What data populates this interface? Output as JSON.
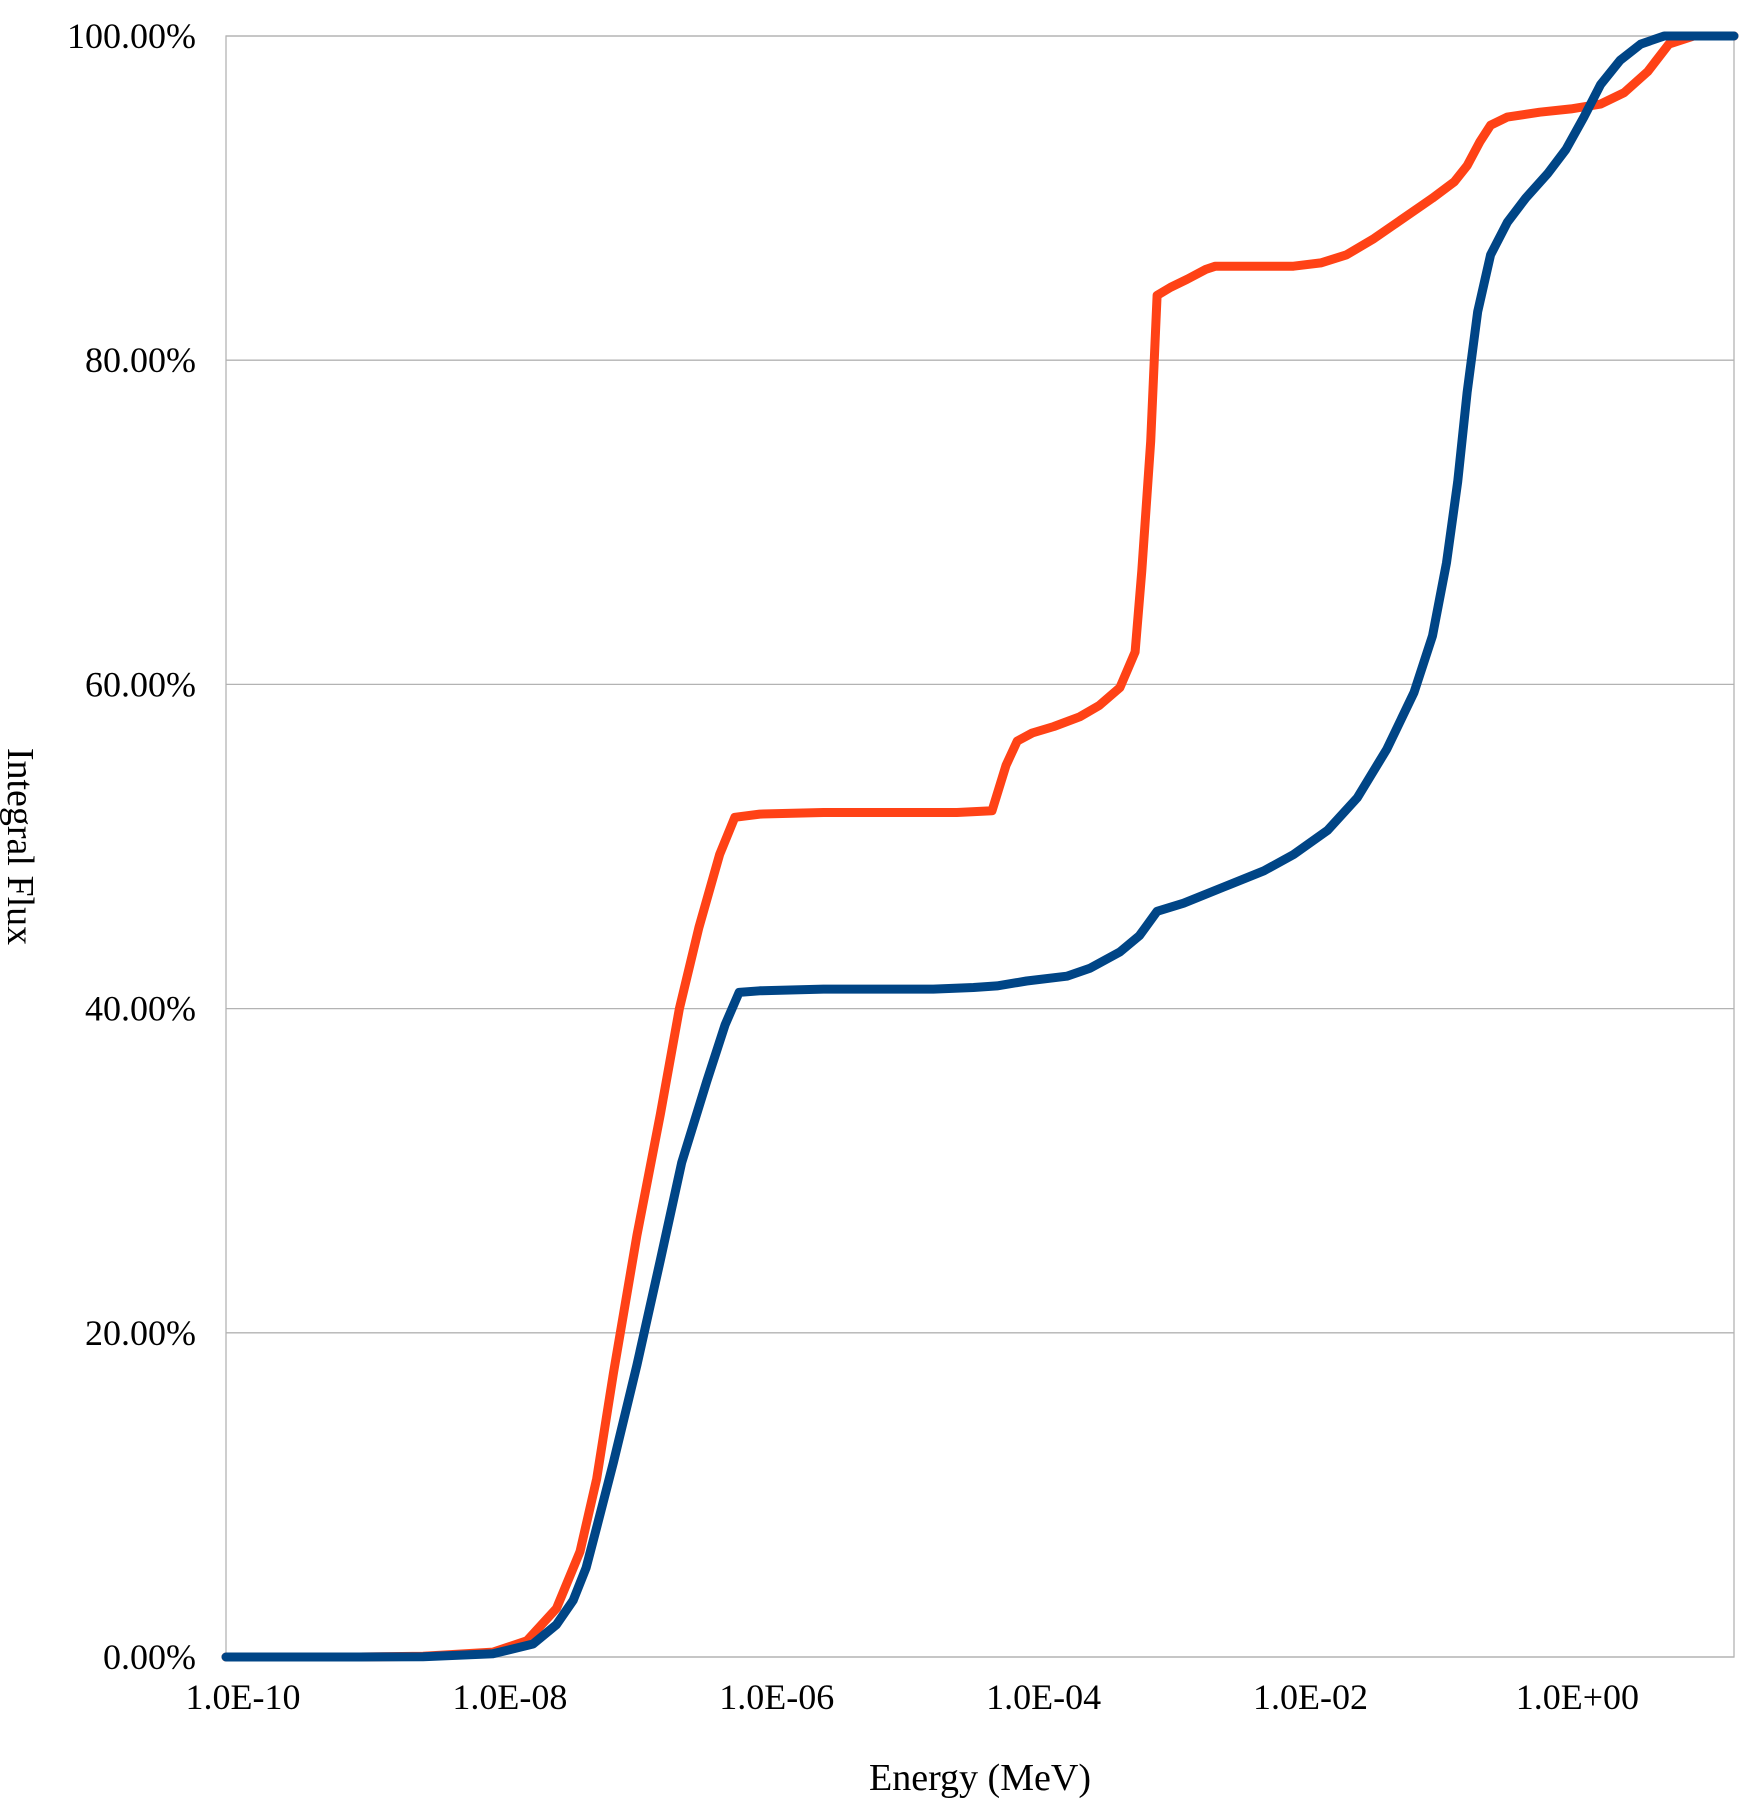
{
  "chart_data": {
    "type": "line",
    "xlabel": "Energy (MeV)",
    "ylabel": "Integral Flux",
    "x_scale": "log",
    "xlim": [
      1e-10,
      20
    ],
    "ylim": [
      0,
      100
    ],
    "grid": true,
    "legend": "none",
    "x_ticks": [
      {
        "value": 1e-10,
        "label": "1.0E-10"
      },
      {
        "value": 1e-08,
        "label": "1.0E-08"
      },
      {
        "value": 1e-06,
        "label": "1.0E-06"
      },
      {
        "value": 0.0001,
        "label": "1.0E-04"
      },
      {
        "value": 0.01,
        "label": "1.0E-02"
      },
      {
        "value": 1,
        "label": "1.0E+00"
      }
    ],
    "y_ticks": [
      {
        "value": 0,
        "label": "0.00%"
      },
      {
        "value": 20,
        "label": "20.00%"
      },
      {
        "value": 40,
        "label": "40.00%"
      },
      {
        "value": 60,
        "label": "60.00%"
      },
      {
        "value": 80,
        "label": "80.00%"
      },
      {
        "value": 100,
        "label": "100.00%"
      }
    ],
    "series": [
      {
        "color": "#ff4216",
        "points": [
          [
            1e-10,
            0
          ],
          [
            1e-09,
            0
          ],
          [
            3e-09,
            0.05
          ],
          [
            1e-08,
            0.3
          ],
          [
            1.8e-08,
            1.0
          ],
          [
            3e-08,
            3.0
          ],
          [
            4.5e-08,
            6.5
          ],
          [
            6e-08,
            11.0
          ],
          [
            8e-08,
            17.5
          ],
          [
            1.2e-07,
            26.0
          ],
          [
            1.8e-07,
            33.5
          ],
          [
            2.5e-07,
            40.0
          ],
          [
            3.5e-07,
            45.0
          ],
          [
            5e-07,
            49.5
          ],
          [
            6.5e-07,
            51.8
          ],
          [
            1e-06,
            52.0
          ],
          [
            3e-06,
            52.1
          ],
          [
            1e-05,
            52.1
          ],
          [
            3e-05,
            52.1
          ],
          [
            5.5e-05,
            52.2
          ],
          [
            7e-05,
            55.0
          ],
          [
            8.5e-05,
            56.5
          ],
          [
            0.00011,
            57.0
          ],
          [
            0.00016,
            57.4
          ],
          [
            0.00025,
            58.0
          ],
          [
            0.00035,
            58.7
          ],
          [
            0.0005,
            59.8
          ],
          [
            0.00065,
            62.0
          ],
          [
            0.00073,
            67.0
          ],
          [
            0.00085,
            75.0
          ],
          [
            0.00095,
            84.0
          ],
          [
            0.0012,
            84.5
          ],
          [
            0.0016,
            85.0
          ],
          [
            0.0022,
            85.6
          ],
          [
            0.0026,
            85.8
          ],
          [
            0.005,
            85.8
          ],
          [
            0.01,
            85.8
          ],
          [
            0.016,
            86.0
          ],
          [
            0.025,
            86.5
          ],
          [
            0.04,
            87.5
          ],
          [
            0.06,
            88.5
          ],
          [
            0.09,
            89.5
          ],
          [
            0.11,
            90.0
          ],
          [
            0.16,
            91.0
          ],
          [
            0.2,
            92.0
          ],
          [
            0.25,
            93.5
          ],
          [
            0.3,
            94.5
          ],
          [
            0.4,
            95.0
          ],
          [
            0.7,
            95.3
          ],
          [
            1.2,
            95.5
          ],
          [
            2.0,
            95.8
          ],
          [
            3.0,
            96.5
          ],
          [
            4.5,
            97.8
          ],
          [
            6.5,
            99.5
          ],
          [
            10,
            100
          ],
          [
            20,
            100
          ]
        ]
      },
      {
        "color": "#004586",
        "points": [
          [
            1e-10,
            0
          ],
          [
            1e-09,
            0
          ],
          [
            3e-09,
            0.02
          ],
          [
            1e-08,
            0.2
          ],
          [
            2e-08,
            0.8
          ],
          [
            3e-08,
            2.0
          ],
          [
            4e-08,
            3.5
          ],
          [
            5e-08,
            5.5
          ],
          [
            6e-08,
            8.0
          ],
          [
            8e-08,
            12.0
          ],
          [
            1.2e-07,
            18.0
          ],
          [
            1.8e-07,
            24.5
          ],
          [
            2.6e-07,
            30.5
          ],
          [
            4e-07,
            35.5
          ],
          [
            5.5e-07,
            39.0
          ],
          [
            7e-07,
            41.0
          ],
          [
            1e-06,
            41.1
          ],
          [
            3e-06,
            41.2
          ],
          [
            1e-05,
            41.2
          ],
          [
            2e-05,
            41.2
          ],
          [
            4e-05,
            41.3
          ],
          [
            6e-05,
            41.4
          ],
          [
            0.0001,
            41.7
          ],
          [
            0.0002,
            42.0
          ],
          [
            0.0003,
            42.5
          ],
          [
            0.0005,
            43.5
          ],
          [
            0.0007,
            44.5
          ],
          [
            0.00095,
            46.0
          ],
          [
            0.0015,
            46.5
          ],
          [
            0.003,
            47.5
          ],
          [
            0.006,
            48.5
          ],
          [
            0.01,
            49.5
          ],
          [
            0.018,
            51.0
          ],
          [
            0.03,
            53.0
          ],
          [
            0.05,
            56.0
          ],
          [
            0.08,
            59.5
          ],
          [
            0.11,
            63.0
          ],
          [
            0.14,
            67.5
          ],
          [
            0.17,
            72.5
          ],
          [
            0.2,
            78.0
          ],
          [
            0.24,
            83.0
          ],
          [
            0.3,
            86.5
          ],
          [
            0.4,
            88.5
          ],
          [
            0.55,
            90.0
          ],
          [
            0.8,
            91.5
          ],
          [
            1.1,
            93.0
          ],
          [
            1.5,
            95.0
          ],
          [
            2.0,
            97.0
          ],
          [
            2.8,
            98.5
          ],
          [
            4.0,
            99.5
          ],
          [
            6.0,
            100
          ],
          [
            20,
            100
          ]
        ]
      }
    ]
  }
}
